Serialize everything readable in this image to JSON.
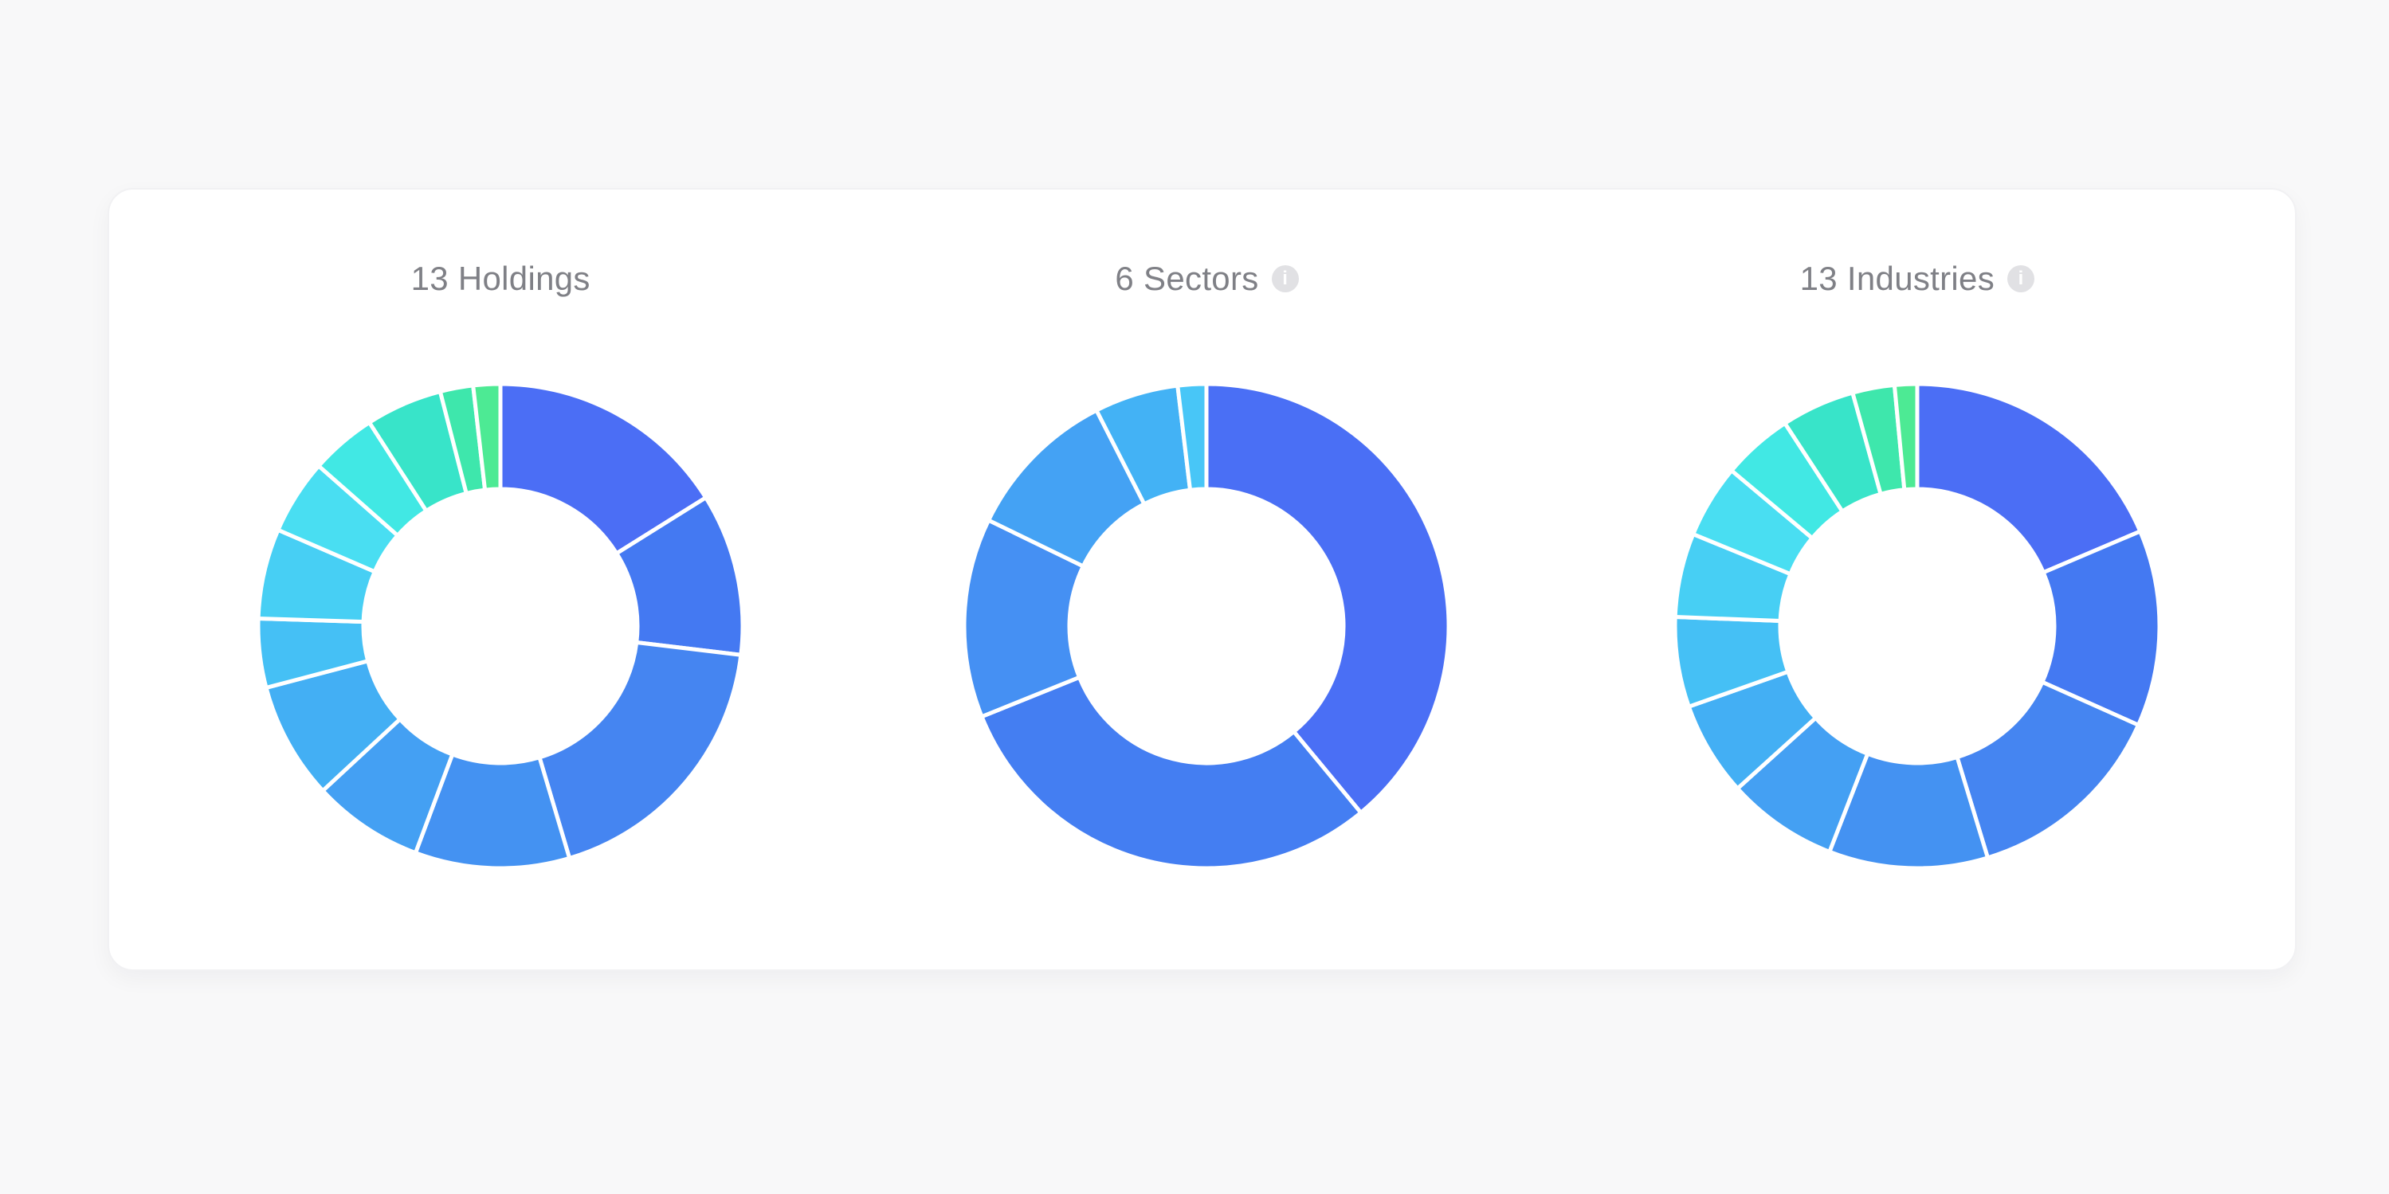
{
  "page": {
    "background_color": "#f8f8f9",
    "card_background_color": "#ffffff",
    "card_border_color": "#f1f1f3",
    "title_text_color": "#7f8086",
    "segment_gap_color": "#ffffff",
    "info_icon_background": "#e1e1e4",
    "info_icon_glyph": "i"
  },
  "chart_data": [
    {
      "type": "pie",
      "subtype": "donut",
      "title": "13 Holdings",
      "segment_count": 13,
      "has_info_icon": false,
      "legend": "none",
      "labels_visible": false,
      "start_angle_deg": 0,
      "direction": "clockwise",
      "values_percent": [
        16.1,
        10.8,
        18.5,
        10.3,
        7.4,
        7.8,
        4.6,
        6.0,
        5.0,
        4.4,
        5.1,
        2.2,
        1.8
      ],
      "colors": [
        "#4B6EF5",
        "#4479F2",
        "#4585F1",
        "#4492F2",
        "#44A0F3",
        "#43AFF4",
        "#45C0F5",
        "#47CFF4",
        "#49DEF2",
        "#41E8E4",
        "#38E4C9",
        "#3EE7AC",
        "#4DEA94"
      ]
    },
    {
      "type": "pie",
      "subtype": "donut",
      "title": "6 Sectors",
      "segment_count": 6,
      "has_info_icon": true,
      "legend": "none",
      "labels_visible": false,
      "start_angle_deg": 0,
      "direction": "clockwise",
      "values_percent": [
        39.0,
        29.9,
        13.3,
        10.3,
        5.6,
        1.9
      ],
      "colors": [
        "#4A6FF5",
        "#447EF2",
        "#4590F3",
        "#44A2F4",
        "#43B2F5",
        "#48C6F7"
      ]
    },
    {
      "type": "pie",
      "subtype": "donut",
      "title": "13 Industries",
      "segment_count": 13,
      "has_info_icon": true,
      "legend": "none",
      "labels_visible": false,
      "start_angle_deg": 0,
      "direction": "clockwise",
      "values_percent": [
        18.6,
        13.1,
        13.6,
        10.6,
        7.4,
        6.3,
        6.0,
        5.6,
        4.9,
        4.7,
        4.9,
        2.8,
        1.5
      ],
      "colors": [
        "#4B6EF5",
        "#4479F2",
        "#4585F1",
        "#4492F2",
        "#44A0F3",
        "#43AFF4",
        "#45C0F5",
        "#47CFF4",
        "#49DEF2",
        "#41E8E4",
        "#38E4C9",
        "#3EE7AC",
        "#4DEA94"
      ]
    }
  ]
}
